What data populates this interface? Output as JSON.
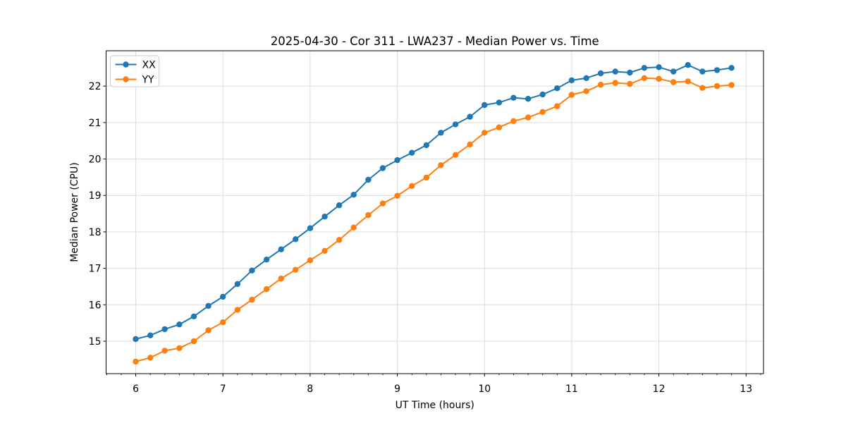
{
  "figure": {
    "title": "2025-04-30 - Cor 311 - LWA237 - Median Power vs. Time"
  },
  "chart_data": {
    "type": "line",
    "title": "2025-04-30 - Cor 311 - LWA237 - Median Power vs. Time",
    "xlabel": "UT Time (hours)",
    "ylabel": "Median Power (CPU)",
    "x": [
      6.0,
      6.167,
      6.333,
      6.5,
      6.667,
      6.833,
      7.0,
      7.167,
      7.333,
      7.5,
      7.667,
      7.833,
      8.0,
      8.167,
      8.333,
      8.5,
      8.667,
      8.833,
      9.0,
      9.167,
      9.333,
      9.5,
      9.667,
      9.833,
      10.0,
      10.167,
      10.333,
      10.5,
      10.667,
      10.833,
      11.0,
      11.167,
      11.333,
      11.5,
      11.667,
      11.833,
      12.0,
      12.167,
      12.333,
      12.5,
      12.667,
      12.833
    ],
    "series": [
      {
        "name": "XX",
        "color": "#1f77b4",
        "values": [
          15.06,
          15.16,
          15.33,
          15.46,
          15.68,
          15.97,
          16.22,
          16.57,
          16.94,
          17.24,
          17.52,
          17.8,
          18.1,
          18.42,
          18.73,
          19.02,
          19.43,
          19.75,
          19.97,
          20.17,
          20.38,
          20.72,
          20.95,
          21.16,
          21.48,
          21.55,
          21.68,
          21.65,
          21.77,
          21.94,
          22.16,
          22.22,
          22.35,
          22.4,
          22.37,
          22.5,
          22.52,
          22.4,
          22.58,
          22.4,
          22.44,
          22.5
        ]
      },
      {
        "name": "YY",
        "color": "#ff7f0e",
        "values": [
          14.44,
          14.55,
          14.74,
          14.81,
          15.0,
          15.3,
          15.52,
          15.86,
          16.14,
          16.43,
          16.72,
          16.96,
          17.22,
          17.48,
          17.78,
          18.12,
          18.46,
          18.78,
          18.99,
          19.26,
          19.49,
          19.83,
          20.11,
          20.4,
          20.72,
          20.87,
          21.04,
          21.14,
          21.29,
          21.45,
          21.76,
          21.86,
          22.04,
          22.09,
          22.06,
          22.22,
          22.2,
          22.11,
          22.13,
          21.95,
          22.0,
          22.03
        ]
      }
    ],
    "xticks": [
      6,
      7,
      8,
      9,
      10,
      11,
      12,
      13
    ],
    "yticks": [
      15,
      16,
      17,
      18,
      19,
      20,
      21,
      22
    ],
    "xlim": [
      5.66,
      13.2
    ],
    "ylim": [
      14.11,
      22.97
    ],
    "x_minor_step": 0.16667,
    "grid": true,
    "grid_color": "#dcdcdc",
    "spine_color": "#000000",
    "legend_position": "upper-left",
    "legend_labels": [
      "XX",
      "YY"
    ],
    "marker": "o",
    "marker_radius": 4.2,
    "line_width": 2
  }
}
